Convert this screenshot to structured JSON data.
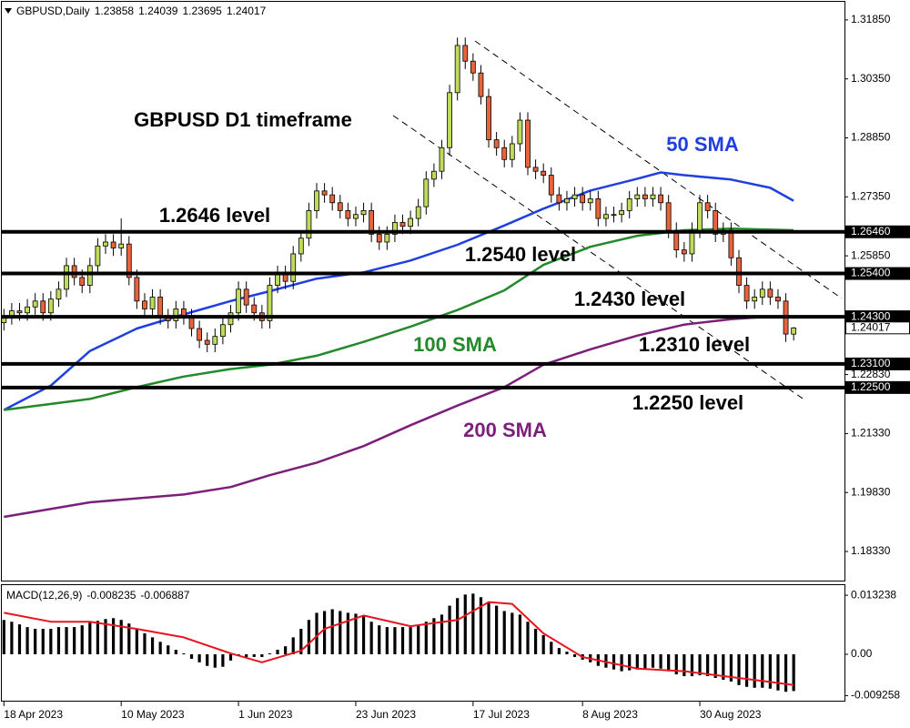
{
  "chart_data": [
    {
      "type": "candlestick",
      "title": "GBPUSD,Daily",
      "up_color": "#bedc5a",
      "down_color": "#e8643c",
      "xlim": [
        -0.5,
        107.5
      ],
      "ylim": [
        1.1759,
        1.3231
      ],
      "xticks": [
        {
          "value": 0,
          "label": "18 Apr 2023"
        },
        {
          "value": 15,
          "label": "10 May 2023"
        },
        {
          "value": 30,
          "label": "1 Jun 2023"
        },
        {
          "value": 45,
          "label": "23 Jun 2023"
        },
        {
          "value": 60,
          "label": "17 Jul 2023"
        },
        {
          "value": 74,
          "label": "8 Aug 2023"
        },
        {
          "value": 89,
          "label": "30 Aug 2023"
        }
      ],
      "yticks": [
        {
          "value": 1.3185,
          "label": "1.31850"
        },
        {
          "value": 1.3035,
          "label": "1.30350"
        },
        {
          "value": 1.2885,
          "label": "1.28850"
        },
        {
          "value": 1.2735,
          "label": "1.27350"
        },
        {
          "value": 1.2585,
          "label": "1.25850"
        },
        {
          "value": 1.2283,
          "label": "1.22830"
        },
        {
          "value": 1.2133,
          "label": "1.21330"
        },
        {
          "value": 1.1983,
          "label": "1.19830"
        },
        {
          "value": 1.1833,
          "label": "1.18330"
        }
      ],
      "annotation": "GBPUSD D1 timeframe",
      "open": [
        1.2415,
        1.243,
        1.2445,
        1.244,
        1.2455,
        1.247,
        1.244,
        1.2475,
        1.25,
        1.256,
        1.253,
        1.251,
        1.256,
        1.261,
        1.262,
        1.2605,
        1.2615,
        1.253,
        1.247,
        1.245,
        1.248,
        1.243,
        1.242,
        1.245,
        1.243,
        1.24,
        1.237,
        1.236,
        1.238,
        1.241,
        1.244,
        1.25,
        1.246,
        1.244,
        1.242,
        1.251,
        1.254,
        1.252,
        1.259,
        1.263,
        1.27,
        1.275,
        1.274,
        1.272,
        1.27,
        1.268,
        1.269,
        1.27,
        1.264,
        1.262,
        1.264,
        1.267,
        1.266,
        1.268,
        1.271,
        1.278,
        1.28,
        1.286,
        1.3,
        1.312,
        1.308,
        1.305,
        1.299,
        1.288,
        1.286,
        1.283,
        1.287,
        1.293,
        1.281,
        1.28,
        1.279,
        1.274,
        1.272,
        1.273,
        1.274,
        1.272,
        1.273,
        1.268,
        1.269,
        1.269,
        1.27,
        1.273,
        1.274,
        1.273,
        1.274,
        1.272,
        1.265,
        1.26,
        1.259,
        1.265,
        1.272,
        1.27,
        1.264,
        1.265,
        1.258,
        1.251,
        1.247,
        1.248,
        1.25,
        1.248,
        1.247,
        1.23858
      ],
      "high": [
        1.245,
        1.2465,
        1.2465,
        1.2475,
        1.249,
        1.249,
        1.2495,
        1.252,
        1.258,
        1.258,
        1.255,
        1.258,
        1.263,
        1.264,
        1.264,
        1.268,
        1.2635,
        1.255,
        1.249,
        1.25,
        1.25,
        1.245,
        1.247,
        1.247,
        1.245,
        1.242,
        1.239,
        1.24,
        1.243,
        1.246,
        1.252,
        1.252,
        1.248,
        1.246,
        1.253,
        1.256,
        1.256,
        1.261,
        1.265,
        1.272,
        1.277,
        1.277,
        1.276,
        1.274,
        1.272,
        1.271,
        1.272,
        1.272,
        1.266,
        1.266,
        1.269,
        1.269,
        1.27,
        1.273,
        1.28,
        1.282,
        1.288,
        1.302,
        1.314,
        1.314,
        1.31,
        1.307,
        1.301,
        1.29,
        1.288,
        1.289,
        1.295,
        1.295,
        1.283,
        1.282,
        1.281,
        1.276,
        1.275,
        1.276,
        1.276,
        1.275,
        1.275,
        1.271,
        1.271,
        1.272,
        1.275,
        1.276,
        1.276,
        1.276,
        1.276,
        1.274,
        1.267,
        1.262,
        1.267,
        1.274,
        1.274,
        1.272,
        1.267,
        1.267,
        1.26,
        1.253,
        1.25,
        1.252,
        1.252,
        1.25,
        1.249,
        1.24039
      ],
      "low": [
        1.2395,
        1.241,
        1.242,
        1.242,
        1.2435,
        1.242,
        1.242,
        1.2455,
        1.248,
        1.251,
        1.249,
        1.249,
        1.254,
        1.259,
        1.2585,
        1.2585,
        1.251,
        1.245,
        1.243,
        1.243,
        1.241,
        1.24,
        1.24,
        1.241,
        1.238,
        1.235,
        1.234,
        1.234,
        1.236,
        1.239,
        1.242,
        1.244,
        1.242,
        1.24,
        1.24,
        1.249,
        1.25,
        1.25,
        1.257,
        1.261,
        1.268,
        1.272,
        1.27,
        1.268,
        1.266,
        1.266,
        1.267,
        1.262,
        1.26,
        1.26,
        1.262,
        1.264,
        1.264,
        1.266,
        1.269,
        1.276,
        1.278,
        1.284,
        1.298,
        1.306,
        1.303,
        1.297,
        1.286,
        1.284,
        1.281,
        1.281,
        1.285,
        1.279,
        1.278,
        1.277,
        1.272,
        1.27,
        1.27,
        1.271,
        1.27,
        1.27,
        1.266,
        1.266,
        1.267,
        1.267,
        1.268,
        1.271,
        1.271,
        1.271,
        1.27,
        1.263,
        1.258,
        1.257,
        1.257,
        1.263,
        1.268,
        1.262,
        1.262,
        1.256,
        1.249,
        1.245,
        1.245,
        1.246,
        1.246,
        1.245,
        1.2366,
        1.23695
      ],
      "close": [
        1.243,
        1.2445,
        1.244,
        1.2455,
        1.247,
        1.244,
        1.2475,
        1.25,
        1.256,
        1.253,
        1.251,
        1.256,
        1.261,
        1.262,
        1.2605,
        1.2615,
        1.253,
        1.247,
        1.245,
        1.248,
        1.243,
        1.242,
        1.245,
        1.243,
        1.24,
        1.237,
        1.236,
        1.238,
        1.241,
        1.244,
        1.25,
        1.246,
        1.244,
        1.242,
        1.251,
        1.254,
        1.252,
        1.259,
        1.263,
        1.27,
        1.275,
        1.274,
        1.272,
        1.27,
        1.268,
        1.269,
        1.27,
        1.264,
        1.262,
        1.264,
        1.267,
        1.266,
        1.268,
        1.271,
        1.278,
        1.28,
        1.286,
        1.3,
        1.312,
        1.308,
        1.305,
        1.299,
        1.288,
        1.286,
        1.283,
        1.287,
        1.293,
        1.281,
        1.28,
        1.279,
        1.274,
        1.272,
        1.273,
        1.274,
        1.272,
        1.273,
        1.268,
        1.269,
        1.269,
        1.27,
        1.273,
        1.274,
        1.273,
        1.274,
        1.272,
        1.265,
        1.26,
        1.259,
        1.265,
        1.272,
        1.27,
        1.264,
        1.265,
        1.258,
        1.251,
        1.247,
        1.248,
        1.25,
        1.248,
        1.247,
        1.2386,
        1.24017
      ],
      "lines": [
        {
          "name": "50 SMA",
          "color": "#1f3fe0",
          "x": [
            0,
            6,
            11,
            17,
            23,
            29,
            34,
            40,
            46,
            52,
            58,
            64,
            69,
            75,
            81,
            84,
            87,
            93,
            98,
            101
          ],
          "values": [
            1.2193,
            1.2255,
            1.2343,
            1.24,
            1.2436,
            1.247,
            1.2495,
            1.2527,
            1.2543,
            1.2573,
            1.2613,
            1.2662,
            1.2705,
            1.2751,
            1.2781,
            1.2797,
            1.279,
            1.2779,
            1.2758,
            1.2725
          ]
        },
        {
          "name": "100 SMA",
          "color": "#23892a",
          "x": [
            0,
            11,
            17,
            23,
            29,
            34,
            40,
            46,
            52,
            58,
            64,
            69,
            75,
            81,
            87,
            93,
            101
          ],
          "values": [
            1.2193,
            1.2221,
            1.2251,
            1.2278,
            1.2297,
            1.2308,
            1.2331,
            1.2366,
            1.2405,
            1.2447,
            1.2497,
            1.2562,
            1.2608,
            1.2636,
            1.265,
            1.2654,
            1.265
          ]
        },
        {
          "name": "200 SMA",
          "color": "#7b1f7b",
          "x": [
            0,
            11,
            23,
            29,
            34,
            40,
            46,
            52,
            58,
            64,
            69,
            75,
            81,
            87,
            93,
            98,
            101
          ],
          "values": [
            1.1921,
            1.1958,
            1.1978,
            1.1997,
            1.2027,
            1.2059,
            1.2101,
            1.2154,
            1.2204,
            1.2251,
            1.2308,
            1.2347,
            1.2382,
            1.241,
            1.2424,
            1.2431,
            1.2428
          ]
        }
      ],
      "levels": [
        {
          "value": 1.2646,
          "label": "1.26460",
          "annotation": "1.2646 level"
        },
        {
          "value": 1.254,
          "label": "1.25400",
          "annotation": "1.2540 level"
        },
        {
          "value": 1.243,
          "label": "1.24300",
          "annotation": "1.2430 level"
        },
        {
          "value": 1.231,
          "label": "1.23100",
          "annotation": "1.2310 level"
        },
        {
          "value": 1.225,
          "label": "1.22500",
          "annotation": "1.2250 level"
        }
      ]
    },
    {
      "type": "bar",
      "title": "MACD(12,26,9)",
      "color": "#000000",
      "xlim": [
        -0.5,
        107.5
      ],
      "ylim": [
        -0.0104,
        0.0153
      ],
      "yticks": [
        0.013238,
        {
          "value": 0,
          "label": "0.00"
        },
        -0.009258
      ],
      "values": [
        0.0077,
        0.0073,
        0.0067,
        0.0061,
        0.0057,
        0.0057,
        0.0057,
        0.0061,
        0.0061,
        0.0061,
        0.0065,
        0.0071,
        0.0075,
        0.0079,
        0.0081,
        0.0077,
        0.0069,
        0.0057,
        0.0047,
        0.0038,
        0.0028,
        0.002,
        0.001,
        0.0002,
        -0.001,
        -0.0018,
        -0.0026,
        -0.003,
        -0.0028,
        -0.0014,
        -0.0002,
        -0.0006,
        -0.0006,
        -0.0006,
        0.0002,
        0.001,
        0.0018,
        0.0038,
        0.0057,
        0.0077,
        0.0093,
        0.0097,
        0.0101,
        0.0097,
        0.0093,
        0.0091,
        0.0085,
        0.0073,
        0.0065,
        0.0061,
        0.0061,
        0.0061,
        0.0061,
        0.0065,
        0.0073,
        0.0081,
        0.0089,
        0.0109,
        0.0126,
        0.0134,
        0.0136,
        0.0128,
        0.0117,
        0.0109,
        0.0097,
        0.0093,
        0.0089,
        0.0073,
        0.0057,
        0.0043,
        0.0028,
        0.0014,
        0.0006,
        -0.0006,
        -0.0012,
        -0.0018,
        -0.0026,
        -0.003,
        -0.0034,
        -0.0038,
        -0.0036,
        -0.0034,
        -0.0032,
        -0.003,
        -0.0032,
        -0.0038,
        -0.0045,
        -0.0049,
        -0.0049,
        -0.0047,
        -0.0049,
        -0.0053,
        -0.0057,
        -0.0061,
        -0.0069,
        -0.0073,
        -0.0075,
        -0.0075,
        -0.0077,
        -0.0081,
        -0.0084,
        -0.008235
      ],
      "signal": {
        "color": "#e8141e",
        "x": [
          0,
          6,
          11,
          17,
          23,
          29,
          33,
          38,
          41,
          46,
          52,
          58,
          62,
          65,
          69,
          74,
          81,
          87,
          93,
          98,
          101
        ],
        "values": [
          0.0093,
          0.0073,
          0.0073,
          0.0057,
          0.0038,
          0.0002,
          -0.0018,
          0.0008,
          0.0057,
          0.0087,
          0.0063,
          0.0077,
          0.0117,
          0.0113,
          0.0047,
          -0.0006,
          -0.0032,
          -0.0038,
          -0.0051,
          -0.0062,
          -0.006887
        ]
      }
    }
  ]
}
